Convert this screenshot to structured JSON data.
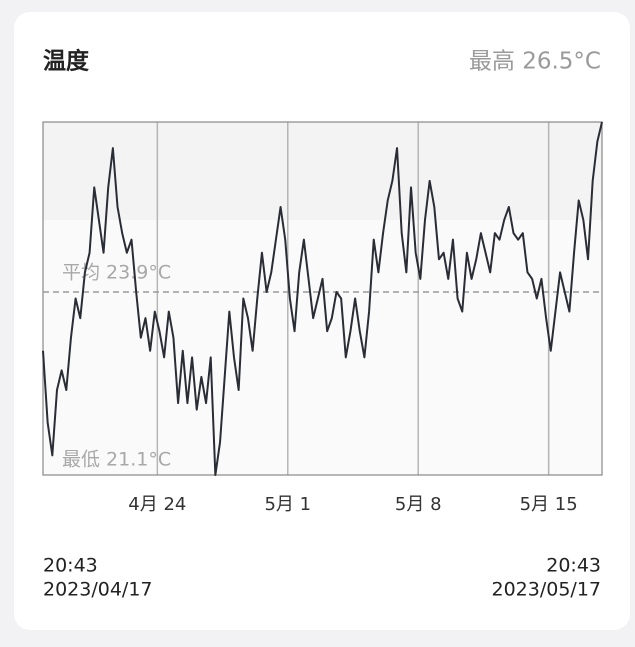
{
  "chart_data": {
    "type": "line",
    "title": "温度",
    "max_label": "最高 26.5°C",
    "avg_label": "平均 23.9°C",
    "min_label": "最低 21.1°C",
    "average": 23.9,
    "color": "#2b2d36",
    "ylim": [
      21.1,
      26.5
    ],
    "xlim": [
      "2023-04-17T20:43",
      "2023-05-17T20:43"
    ],
    "xticks": [
      {
        "value": "2023-04-24T00:00",
        "label": "4月 24"
      },
      {
        "value": "2023-05-01T00:00",
        "label": "5月 1"
      },
      {
        "value": "2023-05-08T00:00",
        "label": "5月 8"
      },
      {
        "value": "2023-05-15T00:00",
        "label": "5月 15"
      }
    ],
    "grid": true,
    "start_time": "20:43",
    "start_date": "2023/04/17",
    "end_time": "20:43",
    "end_date": "2023/05/17",
    "x": [
      "2023-04-17T20:43",
      "2023-04-18T02:43",
      "2023-04-18T08:43",
      "2023-04-18T14:43",
      "2023-04-18T20:43",
      "2023-04-19T02:43",
      "2023-04-19T08:43",
      "2023-04-19T14:43",
      "2023-04-19T20:43",
      "2023-04-20T02:43",
      "2023-04-20T08:43",
      "2023-04-20T14:43",
      "2023-04-20T20:43",
      "2023-04-21T02:43",
      "2023-04-21T08:43",
      "2023-04-21T14:43",
      "2023-04-21T20:43",
      "2023-04-22T02:43",
      "2023-04-22T08:43",
      "2023-04-22T14:43",
      "2023-04-22T20:43",
      "2023-04-23T02:43",
      "2023-04-23T08:43",
      "2023-04-23T14:43",
      "2023-04-23T20:43",
      "2023-04-24T02:43",
      "2023-04-24T08:43",
      "2023-04-24T14:43",
      "2023-04-24T20:43",
      "2023-04-25T02:43",
      "2023-04-25T08:43",
      "2023-04-25T14:43",
      "2023-04-25T20:43",
      "2023-04-26T02:43",
      "2023-04-26T08:43",
      "2023-04-26T14:43",
      "2023-04-26T20:43",
      "2023-04-27T02:43",
      "2023-04-27T08:43",
      "2023-04-27T14:43",
      "2023-04-27T20:43",
      "2023-04-28T02:43",
      "2023-04-28T08:43",
      "2023-04-28T14:43",
      "2023-04-28T20:43",
      "2023-04-29T02:43",
      "2023-04-29T08:43",
      "2023-04-29T14:43",
      "2023-04-29T20:43",
      "2023-04-30T02:43",
      "2023-04-30T08:43",
      "2023-04-30T14:43",
      "2023-04-30T20:43",
      "2023-05-01T02:43",
      "2023-05-01T08:43",
      "2023-05-01T14:43",
      "2023-05-01T20:43",
      "2023-05-02T02:43",
      "2023-05-02T08:43",
      "2023-05-02T14:43",
      "2023-05-02T20:43",
      "2023-05-03T02:43",
      "2023-05-03T08:43",
      "2023-05-03T14:43",
      "2023-05-03T20:43",
      "2023-05-04T02:43",
      "2023-05-04T08:43",
      "2023-05-04T14:43",
      "2023-05-04T20:43",
      "2023-05-05T02:43",
      "2023-05-05T08:43",
      "2023-05-05T14:43",
      "2023-05-05T20:43",
      "2023-05-06T02:43",
      "2023-05-06T08:43",
      "2023-05-06T14:43",
      "2023-05-06T20:43",
      "2023-05-07T02:43",
      "2023-05-07T08:43",
      "2023-05-07T14:43",
      "2023-05-07T20:43",
      "2023-05-08T02:43",
      "2023-05-08T08:43",
      "2023-05-08T14:43",
      "2023-05-08T20:43",
      "2023-05-09T02:43",
      "2023-05-09T08:43",
      "2023-05-09T14:43",
      "2023-05-09T20:43",
      "2023-05-10T02:43",
      "2023-05-10T08:43",
      "2023-05-10T14:43",
      "2023-05-10T20:43",
      "2023-05-11T02:43",
      "2023-05-11T08:43",
      "2023-05-11T14:43",
      "2023-05-11T20:43",
      "2023-05-12T02:43",
      "2023-05-12T08:43",
      "2023-05-12T14:43",
      "2023-05-12T20:43",
      "2023-05-13T02:43",
      "2023-05-13T08:43",
      "2023-05-13T14:43",
      "2023-05-13T20:43",
      "2023-05-14T02:43",
      "2023-05-14T08:43",
      "2023-05-14T14:43",
      "2023-05-14T20:43",
      "2023-05-15T02:43",
      "2023-05-15T08:43",
      "2023-05-15T14:43",
      "2023-05-15T20:43",
      "2023-05-16T02:43",
      "2023-05-16T08:43",
      "2023-05-16T14:43",
      "2023-05-16T20:43",
      "2023-05-17T02:43",
      "2023-05-17T08:43",
      "2023-05-17T14:43",
      "2023-05-17T20:43"
    ],
    "values": [
      23.0,
      21.9,
      21.4,
      22.4,
      22.7,
      22.4,
      23.2,
      23.8,
      23.5,
      24.2,
      24.5,
      25.5,
      25.0,
      24.5,
      25.5,
      26.1,
      25.2,
      24.8,
      24.5,
      24.7,
      23.9,
      23.2,
      23.5,
      23.0,
      23.6,
      23.3,
      22.9,
      23.6,
      23.2,
      22.2,
      23.0,
      22.2,
      22.9,
      22.1,
      22.6,
      22.2,
      22.9,
      21.1,
      21.6,
      22.6,
      23.6,
      22.9,
      22.4,
      23.8,
      23.5,
      23.0,
      23.8,
      24.5,
      23.9,
      24.2,
      24.7,
      25.2,
      24.7,
      23.8,
      23.3,
      24.2,
      24.7,
      24.1,
      23.5,
      23.8,
      24.1,
      23.3,
      23.5,
      23.9,
      23.8,
      22.9,
      23.3,
      23.8,
      23.3,
      22.9,
      23.6,
      24.7,
      24.2,
      24.8,
      25.3,
      25.6,
      26.1,
      24.8,
      24.2,
      25.5,
      24.5,
      24.1,
      25.0,
      25.6,
      25.2,
      24.4,
      24.5,
      24.1,
      24.7,
      23.8,
      23.6,
      24.5,
      24.1,
      24.4,
      24.8,
      24.5,
      24.2,
      24.8,
      24.7,
      25.0,
      25.2,
      24.8,
      24.7,
      24.8,
      24.2,
      24.1,
      23.8,
      24.1,
      23.5,
      23.0,
      23.6,
      24.2,
      23.9,
      23.6,
      24.5,
      25.3,
      25.0,
      24.4,
      25.6,
      26.2,
      26.5
    ]
  }
}
